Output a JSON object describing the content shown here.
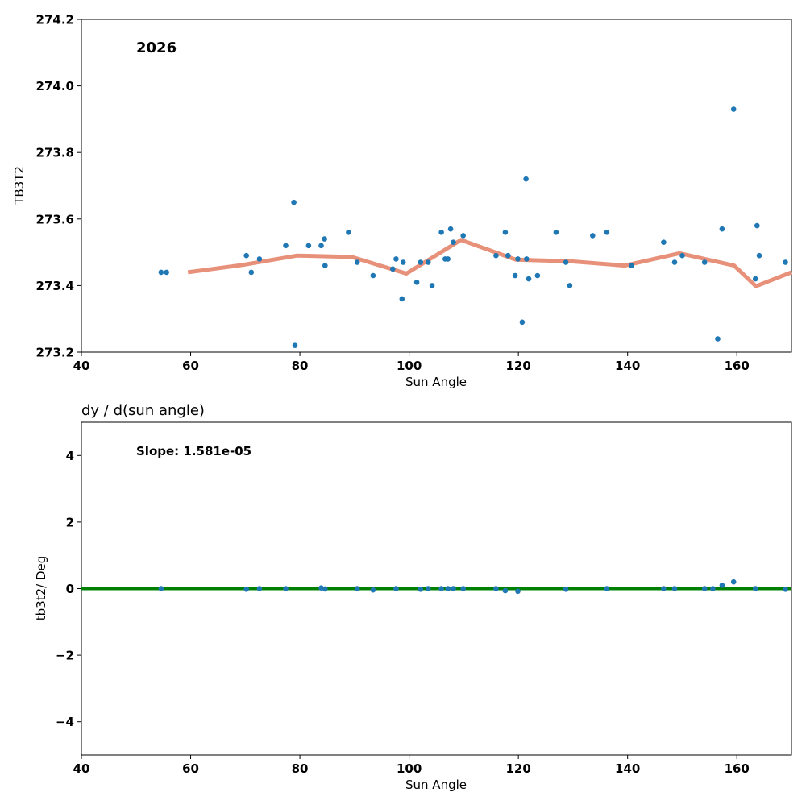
{
  "colors": {
    "points": "#1f77b4",
    "fit_line": "#e8917a",
    "zero_line": "#008000"
  },
  "chart_data": [
    {
      "type": "scatter",
      "annotation": "2026",
      "xlabel": "Sun Angle",
      "ylabel": "TB3T2",
      "xlim": [
        40,
        170
      ],
      "ylim": [
        273.2,
        274.2
      ],
      "xticks": [
        40,
        60,
        80,
        100,
        120,
        140,
        160
      ],
      "yticks": [
        "273.2",
        "273.4",
        "273.6",
        "273.8",
        "274.0",
        "274.2"
      ],
      "series": [
        {
          "name": "points",
          "x": [
            54.6,
            55.6,
            70.2,
            71.1,
            72.6,
            77.4,
            78.9,
            79.1,
            81.6,
            83.9,
            84.5,
            84.6,
            88.9,
            90.5,
            93.4,
            97.0,
            97.6,
            98.7,
            98.9,
            101.4,
            102.1,
            103.5,
            104.2,
            105.9,
            106.6,
            107.1,
            107.6,
            108.1,
            109.9,
            115.9,
            117.6,
            118.1,
            119.4,
            119.9,
            120.7,
            121.4,
            121.5,
            121.9,
            123.5,
            126.9,
            128.7,
            129.4,
            133.6,
            136.2,
            140.7,
            146.6,
            148.6,
            150.0,
            154.1,
            156.5,
            157.3,
            159.4,
            163.4,
            163.7,
            164.1,
            168.9
          ],
          "y": [
            273.44,
            273.44,
            273.49,
            273.44,
            273.48,
            273.52,
            273.65,
            273.22,
            273.52,
            273.52,
            273.54,
            273.46,
            273.56,
            273.47,
            273.43,
            273.45,
            273.48,
            273.36,
            273.47,
            273.41,
            273.47,
            273.47,
            273.4,
            273.56,
            273.48,
            273.48,
            273.57,
            273.53,
            273.55,
            273.49,
            273.56,
            273.49,
            273.43,
            273.48,
            273.29,
            273.72,
            273.48,
            273.42,
            273.43,
            273.56,
            273.47,
            273.4,
            273.55,
            273.56,
            273.46,
            273.53,
            273.47,
            273.49,
            273.47,
            273.24,
            273.57,
            273.93,
            273.42,
            273.58,
            273.49,
            273.47
          ]
        },
        {
          "name": "trend",
          "x": [
            59.5,
            69.5,
            79.5,
            89.5,
            99.5,
            109.5,
            119.5,
            129.5,
            139.5,
            149.5,
            159.5,
            163.5,
            170.0
          ],
          "y": [
            273.44,
            273.462,
            273.49,
            273.486,
            273.436,
            273.537,
            273.478,
            273.473,
            273.46,
            273.497,
            273.46,
            273.398,
            273.44
          ]
        }
      ]
    },
    {
      "type": "scatter",
      "title": "dy / d(sun angle)",
      "annotation": "Slope: 1.581e-05",
      "xlabel": "Sun Angle",
      "ylabel": "tb3t2/ Deg",
      "xlim": [
        40,
        170
      ],
      "ylim": [
        -5,
        5
      ],
      "xticks": [
        40,
        60,
        80,
        100,
        120,
        140,
        160
      ],
      "yticks": [
        "−4",
        "−2",
        "0",
        "2",
        "4"
      ],
      "ytick_values": [
        -4,
        -2,
        0,
        2,
        4
      ],
      "zero_line": 0,
      "series": [
        {
          "name": "derivative",
          "x": [
            54.6,
            70.2,
            72.6,
            77.4,
            83.9,
            84.6,
            90.5,
            93.4,
            97.6,
            102.1,
            103.5,
            105.9,
            107.1,
            108.1,
            109.9,
            115.9,
            117.6,
            119.9,
            128.7,
            136.2,
            146.6,
            148.6,
            154.1,
            155.6,
            157.3,
            159.4,
            163.4,
            168.9
          ],
          "y": [
            0.0,
            -0.02,
            0.0,
            0.0,
            0.02,
            -0.01,
            0.0,
            -0.04,
            0.0,
            -0.02,
            0.0,
            0.0,
            0.0,
            0.0,
            0.0,
            0.0,
            -0.06,
            -0.08,
            -0.02,
            0.0,
            0.0,
            0.0,
            0.0,
            0.0,
            0.1,
            0.2,
            0.0,
            -0.02
          ]
        }
      ]
    }
  ]
}
